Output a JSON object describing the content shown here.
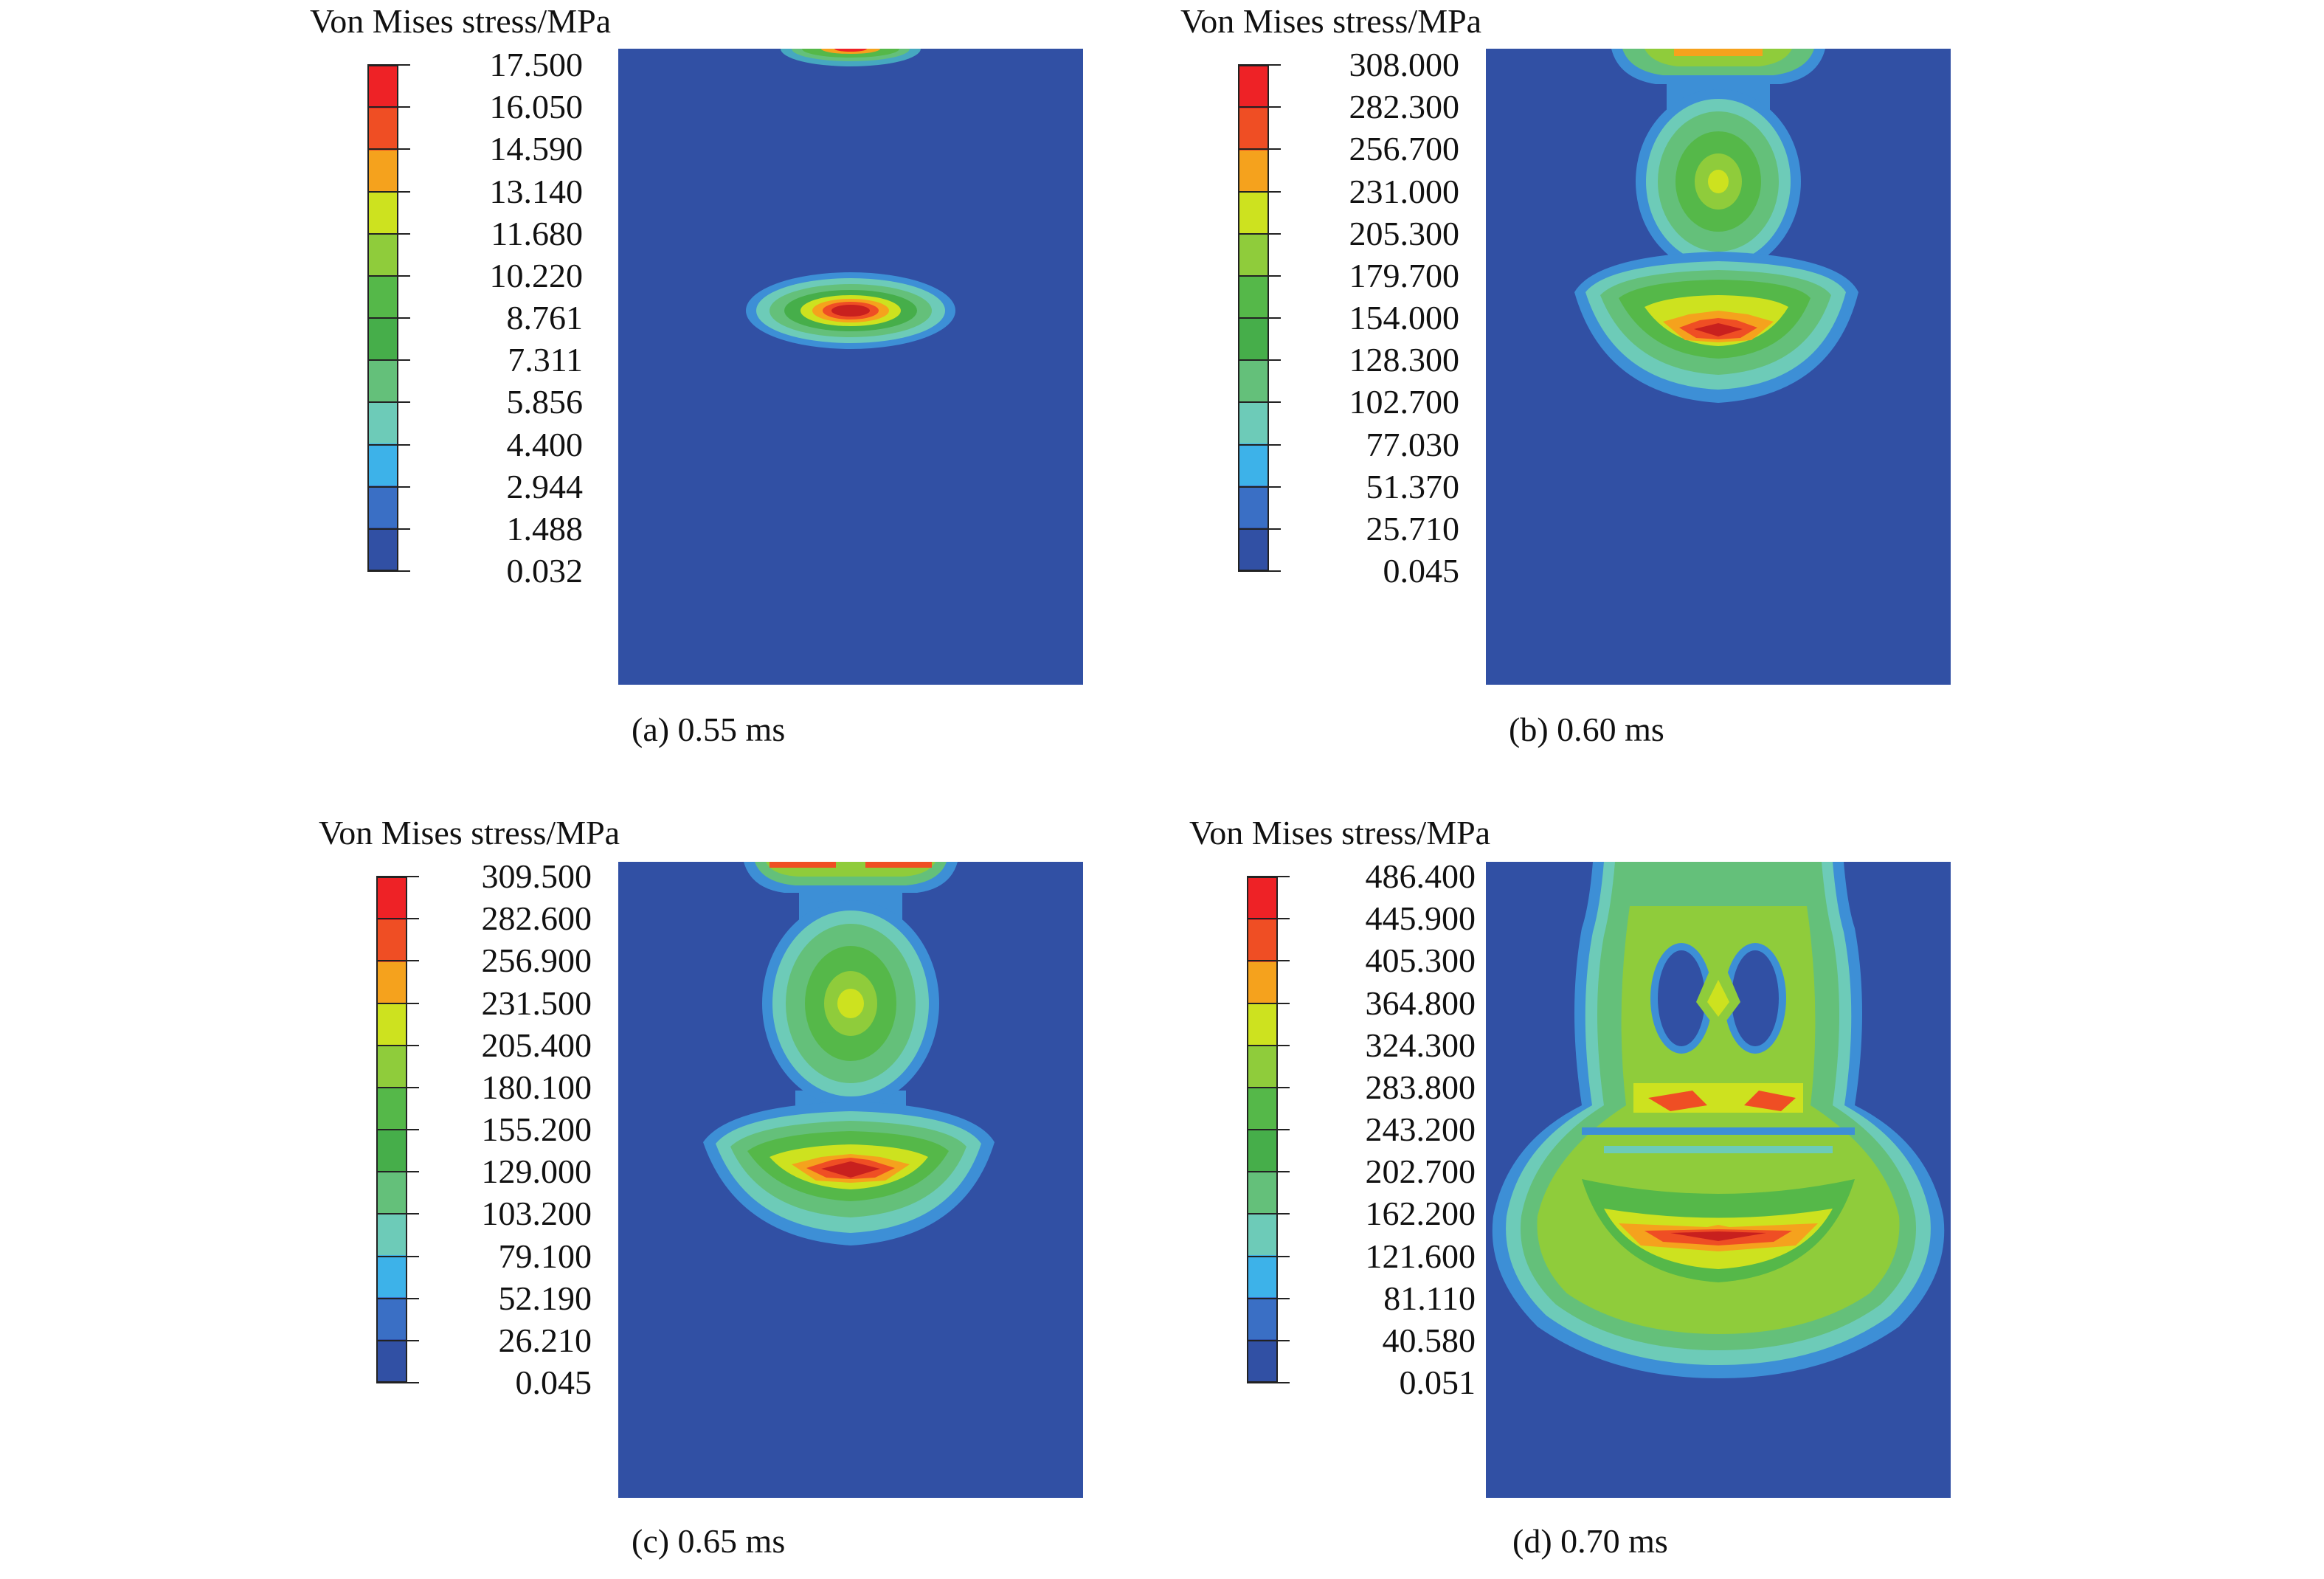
{
  "colors": {
    "background": "#3150a4",
    "palette": [
      "#ee2226",
      "#ef4e24",
      "#f5a21d",
      "#cde21f",
      "#8fcc3b",
      "#55b849",
      "#46ae4a",
      "#64c07a",
      "#6dcbb8",
      "#3db2e9",
      "#3a6fc5",
      "#3150a4"
    ]
  },
  "panels": [
    {
      "legend_title": "Von Mises stress/MPa",
      "legend_values": [
        "17.500",
        "16.050",
        "14.590",
        "13.140",
        "11.680",
        "10.220",
        "8.761",
        "7.311",
        "5.856",
        "4.400",
        "2.944",
        "1.488",
        "0.032"
      ],
      "caption": "(a) 0.55 ms"
    },
    {
      "legend_title": "Von Mises stress/MPa",
      "legend_values": [
        "308.000",
        "282.300",
        "256.700",
        "231.000",
        "205.300",
        "179.700",
        "154.000",
        "128.300",
        "102.700",
        "77.030",
        "51.370",
        "25.710",
        "0.045"
      ],
      "caption": "(b) 0.60 ms"
    },
    {
      "legend_title": "Von Mises stress/MPa",
      "legend_values": [
        "309.500",
        "282.600",
        "256.900",
        "231.500",
        "205.400",
        "180.100",
        "155.200",
        "129.000",
        "103.200",
        "79.100",
        "52.190",
        "26.210",
        "0.045"
      ],
      "caption": "(c) 0.65 ms"
    },
    {
      "legend_title": "Von Mises stress/MPa",
      "legend_values": [
        "486.400",
        "445.900",
        "405.300",
        "364.800",
        "324.300",
        "283.800",
        "243.200",
        "202.700",
        "162.200",
        "121.600",
        "81.110",
        "40.580",
        "0.051"
      ],
      "caption": "(d) 0.70 ms"
    }
  ]
}
